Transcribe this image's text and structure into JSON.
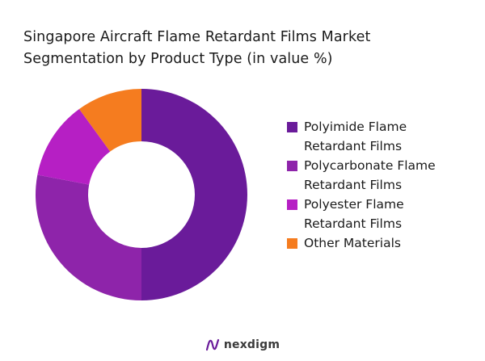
{
  "chart_data": {
    "type": "pie",
    "title_lines": [
      "Singapore Aircraft Flame Retardant Films Market",
      "Segmentation by Product Type (in value %)"
    ],
    "categories": [
      "Polyimide Flame Retardant Films",
      "Polycarbonate Flame Retardant Films",
      "Polyester Flame Retardant Films",
      "Other Materials"
    ],
    "legend_labels": [
      "Polyimide Flame\nRetardant Films",
      "Polycarbonate Flame\nRetardant Films",
      "Polyester Flame\nRetardant Films",
      "Other Materials"
    ],
    "values": [
      50,
      28,
      12,
      10
    ],
    "colors": [
      "#6a1b9a",
      "#8e24aa",
      "#b61fc4",
      "#f57c1f"
    ],
    "donut": true,
    "legend_position": "right"
  },
  "brand": {
    "name": "nexdigm"
  }
}
